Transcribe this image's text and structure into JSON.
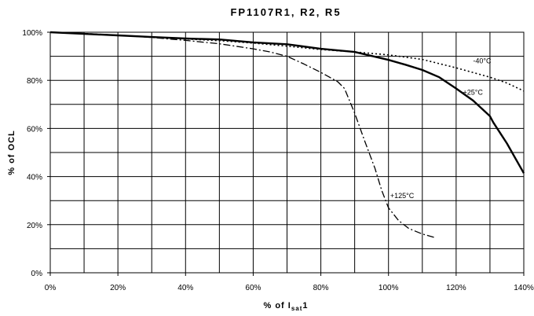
{
  "chart_data": {
    "type": "line",
    "title": "FP1107R1, R2, R5",
    "xlabel": {
      "prefix": "% of I",
      "subscript": "sat",
      "suffix": "1"
    },
    "ylabel": "% of OCL",
    "xlim": [
      0,
      140
    ],
    "ylim": [
      0,
      100
    ],
    "x_ticks": [
      0,
      20,
      40,
      60,
      80,
      100,
      120,
      140
    ],
    "x_tick_labels": [
      "0%",
      "20%",
      "40%",
      "60%",
      "80%",
      "100%",
      "120%",
      "140%"
    ],
    "y_ticks": [
      0,
      20,
      40,
      60,
      80,
      100
    ],
    "y_tick_labels": [
      "0%",
      "20%",
      "40%",
      "60%",
      "80%",
      "100%"
    ],
    "x_grid_step": 10,
    "y_grid_step": 10,
    "grid": true,
    "legend": "none",
    "series": [
      {
        "name": "-40°C",
        "style": "dotted",
        "x": [
          0,
          10,
          20,
          30,
          40,
          50,
          60,
          70,
          80,
          90,
          100,
          110,
          120,
          130,
          135,
          140
        ],
        "y": [
          100,
          99.3,
          98.7,
          98,
          97.2,
          96.5,
          95.5,
          94.2,
          92.8,
          91.8,
          90.6,
          88.7,
          85.2,
          81.3,
          78.9,
          75.6
        ]
      },
      {
        "name": "+25°C",
        "style": "solid",
        "x": [
          0,
          10,
          20,
          30,
          40,
          50,
          60,
          70,
          80,
          90,
          100,
          105,
          110,
          115,
          120,
          125,
          130,
          131,
          135,
          140
        ],
        "y": [
          100,
          99.3,
          98.7,
          98,
          97.4,
          97,
          95.8,
          95,
          93.1,
          91.8,
          88.5,
          86.5,
          84.3,
          81.3,
          76.6,
          71.6,
          65.1,
          62.5,
          53.8,
          41.4
        ]
      },
      {
        "name": "+125°C",
        "style": "dash-dot",
        "x": [
          0,
          10,
          20,
          30,
          40,
          50,
          60,
          65,
          70,
          75,
          80,
          85,
          87,
          90,
          93,
          96,
          98,
          100,
          103,
          106,
          110,
          114
        ],
        "y": [
          100,
          99.5,
          98.8,
          97.8,
          96.6,
          95.2,
          93.1,
          91.8,
          90,
          86.8,
          83.3,
          79.4,
          76.6,
          66.4,
          54.6,
          43.4,
          34.2,
          27,
          21.7,
          18.4,
          16.1,
          14.5
        ]
      }
    ],
    "annotations": [
      {
        "series": "-40°C",
        "text": "-40°C",
        "x": 125,
        "y": 88
      },
      {
        "series": "+25°C",
        "text": "+25°C",
        "x": 122,
        "y": 75
      },
      {
        "series": "+125°C",
        "text": "+125°C",
        "x": 100.5,
        "y": 32
      }
    ]
  }
}
